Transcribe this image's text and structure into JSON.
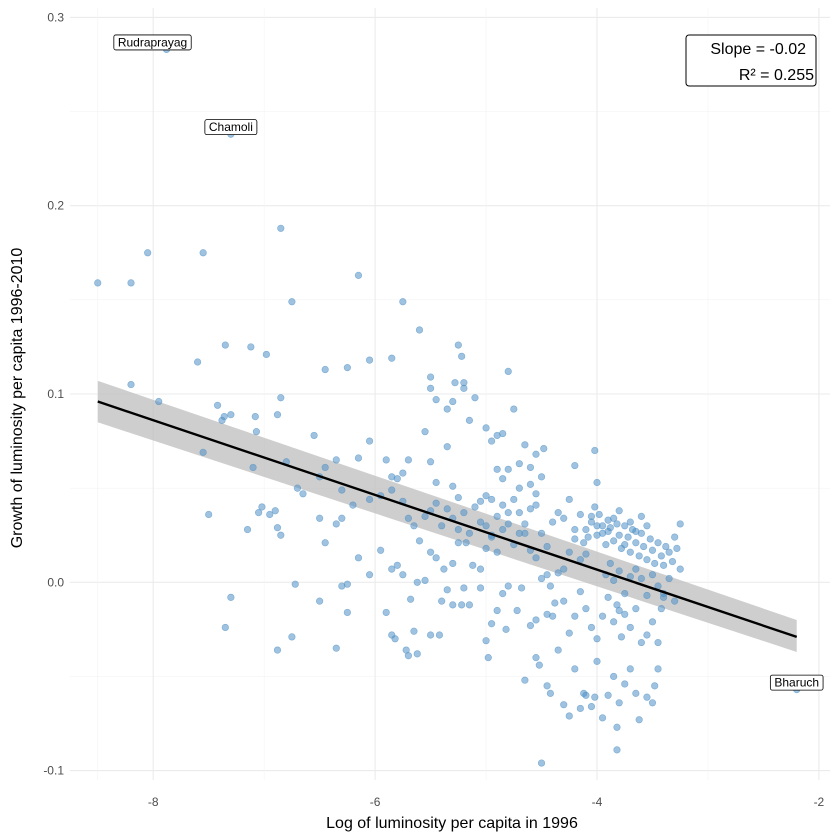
{
  "chart_data": {
    "type": "scatter",
    "title": "",
    "xlabel": "Log of luminosity per capita in 1996",
    "ylabel": "Growth of luminosity per capita 1996-2010",
    "xlim": [
      -8.75,
      -1.9
    ],
    "ylim": [
      -0.105,
      0.305
    ],
    "x_ticks": [
      -8,
      -6,
      -4,
      -2
    ],
    "y_ticks": [
      -0.1,
      0.0,
      0.1,
      0.2,
      0.3
    ],
    "x_tick_labels": [
      "-8",
      "-6",
      "-4",
      "-2"
    ],
    "y_tick_labels": [
      "-0.1",
      "0.0",
      "0.1",
      "0.2",
      "0.3"
    ],
    "grid": true,
    "point_color": "#4f8fc4",
    "line_color": "#000000",
    "band_color": "#bdbdbd",
    "fit": {
      "x": [
        -8.5,
        -2.2
      ],
      "y": [
        0.096,
        -0.029
      ],
      "slope": -0.02,
      "r2": 0.255,
      "ci_start": [
        0.085,
        0.107
      ],
      "ci_end": [
        -0.037,
        -0.02
      ]
    },
    "stats_box": {
      "slope_text": "Slope = -0.02",
      "r2_text": "R² = 0.255",
      "position": "top-right"
    },
    "annotations": [
      {
        "text": "Rudraprayag",
        "x": -7.88,
        "y": 0.283
      },
      {
        "text": "Chamoli",
        "x": -7.3,
        "y": 0.238
      },
      {
        "text": "Bharuch",
        "x": -2.2,
        "y": -0.057
      }
    ],
    "points": [
      [
        -7.88,
        0.283
      ],
      [
        -7.3,
        0.238
      ],
      [
        -2.2,
        -0.057
      ],
      [
        -8.5,
        0.159
      ],
      [
        -8.2,
        0.159
      ],
      [
        -8.05,
        0.175
      ],
      [
        -7.55,
        0.175
      ],
      [
        -6.85,
        0.188
      ],
      [
        -8.2,
        0.105
      ],
      [
        -7.95,
        0.096
      ],
      [
        -7.6,
        0.117
      ],
      [
        -7.35,
        0.126
      ],
      [
        -7.12,
        0.125
      ],
      [
        -6.98,
        0.121
      ],
      [
        -7.42,
        0.094
      ],
      [
        -7.38,
        0.086
      ],
      [
        -7.36,
        0.088
      ],
      [
        -7.3,
        0.089
      ],
      [
        -7.08,
        0.088
      ],
      [
        -7.07,
        0.08
      ],
      [
        -6.88,
        0.089
      ],
      [
        -6.85,
        0.098
      ],
      [
        -6.75,
        0.149
      ],
      [
        -6.15,
        0.163
      ],
      [
        -5.75,
        0.149
      ],
      [
        -5.6,
        0.134
      ],
      [
        -5.25,
        0.126
      ],
      [
        -6.45,
        0.113
      ],
      [
        -6.25,
        0.114
      ],
      [
        -6.05,
        0.118
      ],
      [
        -5.85,
        0.119
      ],
      [
        -5.5,
        0.109
      ],
      [
        -5.28,
        0.106
      ],
      [
        -5.2,
        0.106
      ],
      [
        -5.22,
        0.12
      ],
      [
        -4.8,
        0.112
      ],
      [
        -7.55,
        0.069
      ],
      [
        -7.1,
        0.061
      ],
      [
        -7.05,
        0.037
      ],
      [
        -7.02,
        0.04
      ],
      [
        -6.95,
        0.036
      ],
      [
        -6.9,
        0.038
      ],
      [
        -6.8,
        0.064
      ],
      [
        -6.7,
        0.05
      ],
      [
        -6.65,
        0.047
      ],
      [
        -6.55,
        0.078
      ],
      [
        -7.5,
        0.036
      ],
      [
        -7.15,
        0.028
      ],
      [
        -6.88,
        0.029
      ],
      [
        -6.85,
        0.025
      ],
      [
        -6.5,
        0.034
      ],
      [
        -6.45,
        0.021
      ],
      [
        -6.35,
        0.031
      ],
      [
        -6.3,
        0.034
      ],
      [
        -6.5,
        0.056
      ],
      [
        -6.45,
        0.061
      ],
      [
        -6.35,
        0.065
      ],
      [
        -6.3,
        0.049
      ],
      [
        -6.2,
        0.041
      ],
      [
        -6.15,
        0.066
      ],
      [
        -6.05,
        0.075
      ],
      [
        -6.05,
        0.044
      ],
      [
        -5.95,
        0.046
      ],
      [
        -5.9,
        0.065
      ],
      [
        -5.85,
        0.056
      ],
      [
        -5.8,
        0.055
      ],
      [
        -5.75,
        0.058
      ],
      [
        -5.7,
        0.065
      ],
      [
        -5.5,
        0.103
      ],
      [
        -5.45,
        0.097
      ],
      [
        -5.35,
        0.092
      ],
      [
        -5.3,
        0.096
      ],
      [
        -5.2,
        0.103
      ],
      [
        -5.1,
        0.098
      ],
      [
        -5.15,
        0.086
      ],
      [
        -5.0,
        0.082
      ],
      [
        -4.95,
        0.075
      ],
      [
        -4.9,
        0.078
      ],
      [
        -4.85,
        0.079
      ],
      [
        -5.55,
        0.08
      ],
      [
        -5.35,
        0.072
      ],
      [
        -5.5,
        0.064
      ],
      [
        -5.45,
        0.053
      ],
      [
        -5.3,
        0.051
      ],
      [
        -5.25,
        0.045
      ],
      [
        -5.05,
        0.043
      ],
      [
        -5.0,
        0.046
      ],
      [
        -4.95,
        0.044
      ],
      [
        -4.75,
        0.092
      ],
      [
        -4.7,
        0.063
      ],
      [
        -4.65,
        0.073
      ],
      [
        -4.6,
        0.061
      ],
      [
        -4.55,
        0.068
      ],
      [
        -4.48,
        0.071
      ],
      [
        -4.5,
        0.056
      ],
      [
        -4.2,
        0.062
      ],
      [
        -4.02,
        0.07
      ],
      [
        -4.0,
        0.053
      ],
      [
        -4.8,
        0.06
      ],
      [
        -4.9,
        0.06
      ],
      [
        -4.85,
        0.055
      ],
      [
        -4.7,
        0.05
      ],
      [
        -4.6,
        0.052
      ],
      [
        -4.55,
        0.047
      ],
      [
        -6.25,
        -0.001
      ],
      [
        -6.3,
        -0.002
      ],
      [
        -6.5,
        -0.01
      ],
      [
        -6.72,
        -0.001
      ],
      [
        -6.75,
        -0.029
      ],
      [
        -7.3,
        -0.008
      ],
      [
        -7.35,
        -0.024
      ],
      [
        -6.88,
        -0.036
      ],
      [
        -6.35,
        -0.035
      ],
      [
        -6.25,
        -0.016
      ],
      [
        -6.15,
        0.013
      ],
      [
        -6.05,
        0.004
      ],
      [
        -5.95,
        0.017
      ],
      [
        -5.85,
        0.007
      ],
      [
        -5.9,
        -0.016
      ],
      [
        -5.85,
        -0.028
      ],
      [
        -5.82,
        -0.03
      ],
      [
        -5.7,
        -0.039
      ],
      [
        -5.72,
        -0.036
      ],
      [
        -5.65,
        -0.026
      ],
      [
        -5.62,
        -0.038
      ],
      [
        -5.5,
        -0.028
      ],
      [
        -5.42,
        -0.028
      ],
      [
        -5.4,
        -0.01
      ],
      [
        -5.35,
        -0.004
      ],
      [
        -5.3,
        -0.012
      ],
      [
        -5.22,
        -0.012
      ],
      [
        -5.2,
        -0.003
      ],
      [
        -5.15,
        -0.012
      ],
      [
        -5.05,
        -0.003
      ],
      [
        -5.0,
        -0.031
      ],
      [
        -4.98,
        -0.04
      ],
      [
        -4.95,
        -0.022
      ],
      [
        -4.9,
        -0.015
      ],
      [
        -4.85,
        -0.006
      ],
      [
        -4.82,
        -0.025
      ],
      [
        -4.8,
        -0.002
      ],
      [
        -4.6,
        -0.023
      ],
      [
        -4.55,
        -0.02
      ],
      [
        -4.45,
        -0.017
      ],
      [
        -4.4,
        -0.018
      ],
      [
        -4.38,
        -0.011
      ],
      [
        -5.68,
        -0.009
      ],
      [
        -5.62,
        0.0
      ],
      [
        -5.8,
        0.009
      ],
      [
        -5.75,
        0.004
      ],
      [
        -5.55,
        0.001
      ],
      [
        -5.5,
        0.016
      ],
      [
        -5.45,
        0.013
      ],
      [
        -5.38,
        0.007
      ],
      [
        -5.3,
        0.01
      ],
      [
        -5.25,
        0.021
      ],
      [
        -5.18,
        0.021
      ],
      [
        -5.12,
        0.009
      ],
      [
        -5.05,
        0.007
      ],
      [
        -5.0,
        0.018
      ],
      [
        -4.95,
        0.025
      ],
      [
        -4.9,
        0.016
      ],
      [
        -4.85,
        0.028
      ],
      [
        -4.8,
        0.031
      ],
      [
        -4.75,
        0.02
      ],
      [
        -4.7,
        0.026
      ],
      [
        -4.65,
        0.026
      ],
      [
        -4.6,
        0.017
      ],
      [
        -4.55,
        0.013
      ],
      [
        -4.5,
        0.002
      ],
      [
        -4.45,
        0.004
      ],
      [
        -4.42,
        -0.002
      ],
      [
        -4.35,
        0.005
      ],
      [
        -4.3,
        0.007
      ],
      [
        -4.25,
        0.016
      ],
      [
        -4.2,
        0.023
      ],
      [
        -4.15,
        0.012
      ],
      [
        -4.1,
        0.015
      ],
      [
        -5.85,
        0.049
      ],
      [
        -5.75,
        0.043
      ],
      [
        -5.7,
        0.034
      ],
      [
        -5.65,
        0.03
      ],
      [
        -5.6,
        0.022
      ],
      [
        -5.55,
        0.035
      ],
      [
        -5.5,
        0.038
      ],
      [
        -5.45,
        0.042
      ],
      [
        -5.4,
        0.03
      ],
      [
        -5.35,
        0.039
      ],
      [
        -5.3,
        0.034
      ],
      [
        -5.25,
        0.028
      ],
      [
        -5.2,
        0.037
      ],
      [
        -5.15,
        0.026
      ],
      [
        -5.1,
        0.04
      ],
      [
        -5.05,
        0.032
      ],
      [
        -5.0,
        0.03
      ],
      [
        -4.95,
        0.024
      ],
      [
        -4.9,
        0.035
      ],
      [
        -4.85,
        0.041
      ],
      [
        -4.8,
        0.037
      ],
      [
        -4.75,
        0.044
      ],
      [
        -4.7,
        0.037
      ],
      [
        -4.65,
        0.031
      ],
      [
        -4.6,
        0.039
      ],
      [
        -4.55,
        0.041
      ],
      [
        -4.5,
        0.026
      ],
      [
        -4.45,
        0.019
      ],
      [
        -4.4,
        0.032
      ],
      [
        -4.35,
        0.037
      ],
      [
        -4.3,
        0.034
      ],
      [
        -4.25,
        0.044
      ],
      [
        -4.2,
        0.028
      ],
      [
        -4.15,
        0.036
      ],
      [
        -4.12,
        0.021
      ],
      [
        -4.08,
        0.024
      ],
      [
        -4.05,
        0.032
      ],
      [
        -4.02,
        0.04
      ],
      [
        -4.0,
        0.03
      ],
      [
        -3.98,
        0.036
      ],
      [
        -3.95,
        0.026
      ],
      [
        -3.92,
        0.02
      ],
      [
        -3.9,
        0.033
      ],
      [
        -3.88,
        0.029
      ],
      [
        -3.85,
        0.022
      ],
      [
        -3.82,
        0.031
      ],
      [
        -3.8,
        0.025
      ],
      [
        -3.78,
        0.018
      ],
      [
        -3.75,
        0.03
      ],
      [
        -3.72,
        0.024
      ],
      [
        -3.7,
        0.016
      ],
      [
        -3.68,
        0.028
      ],
      [
        -3.65,
        0.021
      ],
      [
        -3.62,
        0.014
      ],
      [
        -3.6,
        0.026
      ],
      [
        -3.58,
        0.019
      ],
      [
        -3.55,
        0.012
      ],
      [
        -3.52,
        0.023
      ],
      [
        -3.5,
        0.017
      ],
      [
        -3.48,
        0.01
      ],
      [
        -3.45,
        0.021
      ],
      [
        -3.42,
        0.014
      ],
      [
        -3.4,
        0.009
      ],
      [
        -3.38,
        0.019
      ],
      [
        -3.35,
        0.016
      ],
      [
        -3.32,
        0.011
      ],
      [
        -3.3,
        0.024
      ],
      [
        -3.28,
        0.018
      ],
      [
        -3.25,
        0.031
      ],
      [
        -4.1,
        0.028
      ],
      [
        -4.05,
        0.035
      ],
      [
        -4.0,
        0.025
      ],
      [
        -3.95,
        0.03
      ],
      [
        -3.9,
        0.027
      ],
      [
        -3.85,
        0.034
      ],
      [
        -3.8,
        0.038
      ],
      [
        -3.75,
        0.02
      ],
      [
        -3.7,
        0.032
      ],
      [
        -3.65,
        0.027
      ],
      [
        -3.6,
        0.035
      ],
      [
        -3.55,
        0.03
      ],
      [
        -3.92,
        0.004
      ],
      [
        -3.88,
        0.01
      ],
      [
        -3.85,
        0.001
      ],
      [
        -3.8,
        0.006
      ],
      [
        -3.75,
        -0.006
      ],
      [
        -3.7,
        0.003
      ],
      [
        -3.65,
        0.007
      ],
      [
        -3.6,
        0.002
      ],
      [
        -3.55,
        -0.007
      ],
      [
        -3.5,
        0.004
      ],
      [
        -3.45,
        -0.002
      ],
      [
        -3.4,
        -0.006
      ],
      [
        -3.35,
        0.002
      ],
      [
        -3.3,
        -0.01
      ],
      [
        -3.25,
        0.007
      ],
      [
        -4.3,
        -0.01
      ],
      [
        -4.25,
        -0.027
      ],
      [
        -4.2,
        -0.018
      ],
      [
        -4.15,
        -0.005
      ],
      [
        -4.1,
        -0.014
      ],
      [
        -4.05,
        -0.024
      ],
      [
        -4.0,
        -0.03
      ],
      [
        -3.95,
        -0.018
      ],
      [
        -3.9,
        -0.008
      ],
      [
        -3.85,
        -0.021
      ],
      [
        -3.82,
        -0.012
      ],
      [
        -3.8,
        -0.015
      ],
      [
        -3.78,
        -0.029
      ],
      [
        -3.75,
        -0.017
      ],
      [
        -3.7,
        -0.024
      ],
      [
        -3.65,
        -0.014
      ],
      [
        -3.6,
        -0.032
      ],
      [
        -3.55,
        -0.028
      ],
      [
        -3.5,
        -0.021
      ],
      [
        -3.45,
        -0.032
      ],
      [
        -3.42,
        -0.014
      ],
      [
        -3.4,
        -0.008
      ],
      [
        -4.65,
        -0.052
      ],
      [
        -4.55,
        -0.04
      ],
      [
        -4.52,
        -0.044
      ],
      [
        -4.45,
        -0.055
      ],
      [
        -4.42,
        -0.059
      ],
      [
        -4.35,
        -0.036
      ],
      [
        -4.3,
        -0.065
      ],
      [
        -4.25,
        -0.071
      ],
      [
        -4.2,
        -0.046
      ],
      [
        -4.15,
        -0.067
      ],
      [
        -4.12,
        -0.059
      ],
      [
        -4.1,
        -0.06
      ],
      [
        -4.05,
        -0.066
      ],
      [
        -4.02,
        -0.061
      ],
      [
        -4.0,
        -0.042
      ],
      [
        -3.95,
        -0.072
      ],
      [
        -3.9,
        -0.06
      ],
      [
        -3.85,
        -0.05
      ],
      [
        -3.82,
        -0.077
      ],
      [
        -3.8,
        -0.064
      ],
      [
        -3.75,
        -0.054
      ],
      [
        -3.7,
        -0.046
      ],
      [
        -3.65,
        -0.059
      ],
      [
        -3.62,
        -0.073
      ],
      [
        -3.55,
        -0.061
      ],
      [
        -3.5,
        -0.064
      ],
      [
        -3.48,
        -0.055
      ],
      [
        -3.45,
        -0.046
      ],
      [
        -4.5,
        -0.096
      ],
      [
        -3.82,
        -0.089
      ],
      [
        -4.68,
        -0.003
      ],
      [
        -4.72,
        -0.015
      ]
    ]
  }
}
